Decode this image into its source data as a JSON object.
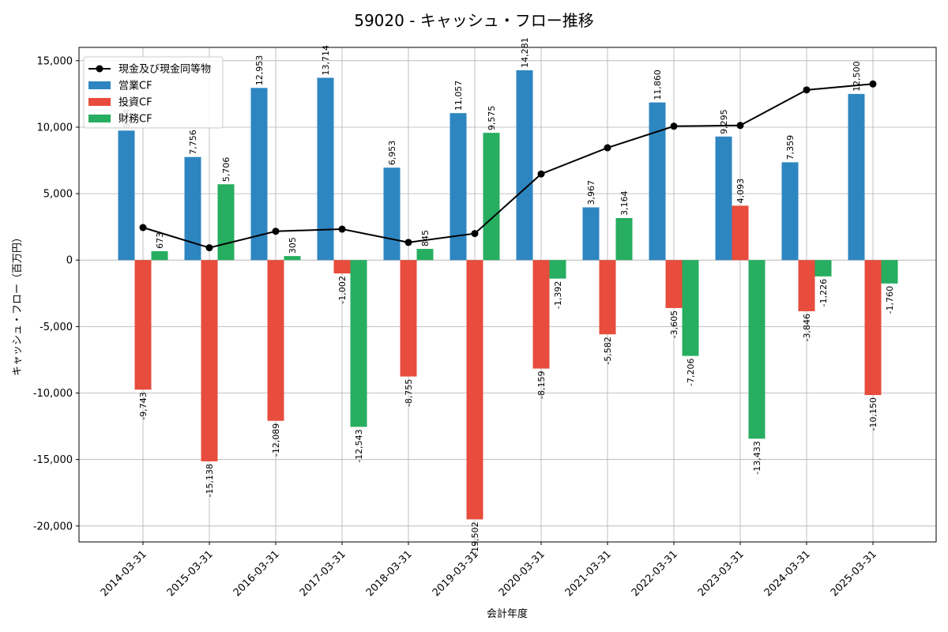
{
  "chart_data": {
    "type": "bar",
    "title": "59020 - キャッシュ・フロー推移",
    "xlabel": "会計年度",
    "ylabel": "キャッシュ・フロー（百万円）",
    "ylim": [
      -21200,
      16000
    ],
    "yticks": [
      -20000,
      -15000,
      -10000,
      -5000,
      0,
      5000,
      10000,
      15000
    ],
    "ytick_labels": [
      "-20,000",
      "-15,000",
      "-10,000",
      "-5,000",
      "0",
      "5,000",
      "10,000",
      "15,000"
    ],
    "grid": true,
    "legend_position": "top-left",
    "categories": [
      "2014-03-31",
      "2015-03-31",
      "2016-03-31",
      "2017-03-31",
      "2018-03-31",
      "2019-03-31",
      "2020-03-31",
      "2021-03-31",
      "2022-03-31",
      "2023-03-31",
      "2024-03-31",
      "2025-03-31"
    ],
    "series": [
      {
        "name": "営業CF",
        "kind": "bar",
        "color": "#2e86c1",
        "values": [
          9743,
          7756,
          12953,
          13714,
          6953,
          11057,
          14281,
          3967,
          11860,
          9295,
          7359,
          12500
        ],
        "labels": [
          "9,743",
          "7,756",
          "12,953",
          "13,714",
          "6,953",
          "11,057",
          "14,281",
          "3,967",
          "11,860",
          "9,295",
          "7,359",
          "12,500"
        ]
      },
      {
        "name": "投資CF",
        "kind": "bar",
        "color": "#e74c3c",
        "values": [
          -9743,
          -15138,
          -12089,
          -1002,
          -8755,
          -19502,
          -8159,
          -5582,
          -3605,
          4093,
          -3846,
          -10150
        ],
        "labels": [
          "-9,743",
          "-15,138",
          "-12,089",
          "-1,002",
          "-8,755",
          "-19,502",
          "-8,159",
          "-5,582",
          "-3,605",
          "4,093",
          "-3,846",
          "-10,150"
        ]
      },
      {
        "name": "財務CF",
        "kind": "bar",
        "color": "#27ae60",
        "values": [
          673,
          5706,
          305,
          -12543,
          845,
          9575,
          -1392,
          3164,
          -7206,
          -13433,
          -1226,
          -1760
        ],
        "labels": [
          "673",
          "5,706",
          "305",
          "-12,543",
          "845",
          "9,575",
          "-1,392",
          "3,164",
          "-7,206",
          "-13,433",
          "-1,226",
          "-1,760"
        ]
      },
      {
        "name": "現金及び現金同等物",
        "kind": "line",
        "color": "#000000",
        "values": [
          2450,
          930,
          2170,
          2330,
          1330,
          2000,
          6480,
          8450,
          10070,
          10130,
          12800,
          13250
        ]
      }
    ]
  }
}
